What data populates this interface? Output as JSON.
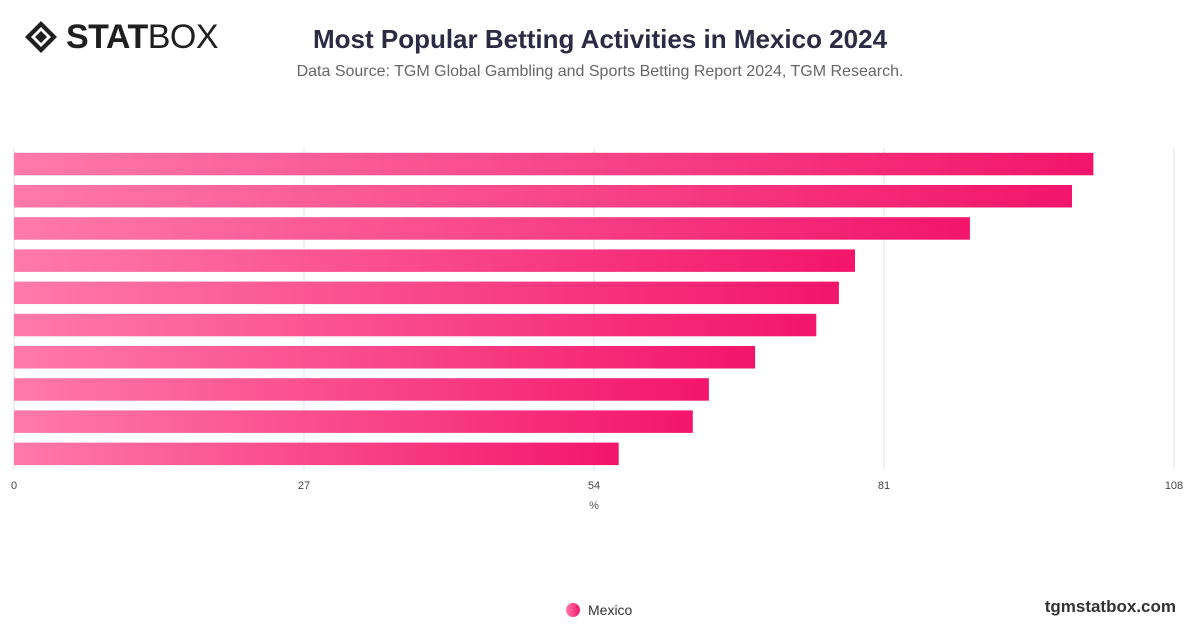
{
  "header": {
    "logo_text_bold": "STAT",
    "logo_text_light": "BOX",
    "title": "Most Popular Betting Activities in Mexico 2024",
    "subtitle": "Data Source: TGM Global Gambling and Sports Betting Report 2024, TGM Research."
  },
  "legend": {
    "label": "Mexico"
  },
  "footer": {
    "site": "tgmstatbox.com"
  },
  "colors": {
    "bar_start": "#ff7aa8",
    "bar_end": "#f3156b",
    "grid": "#e2e2e2",
    "axis_text": "#444444"
  },
  "chart_data": {
    "type": "bar",
    "orientation": "horizontal",
    "categories": [
      "",
      "",
      "",
      "",
      "",
      "",
      "",
      "",
      "",
      ""
    ],
    "series": [
      {
        "name": "Mexico",
        "values": [
          100.5,
          98.5,
          89,
          78.3,
          76.8,
          74.7,
          69,
          64.7,
          63.2,
          56.3
        ]
      }
    ],
    "xlabel": "%",
    "ylabel": "",
    "xlim": [
      0,
      108
    ],
    "xticks": [
      0,
      27,
      54,
      81,
      108
    ],
    "grid": true,
    "legend_position": "bottom-center"
  }
}
